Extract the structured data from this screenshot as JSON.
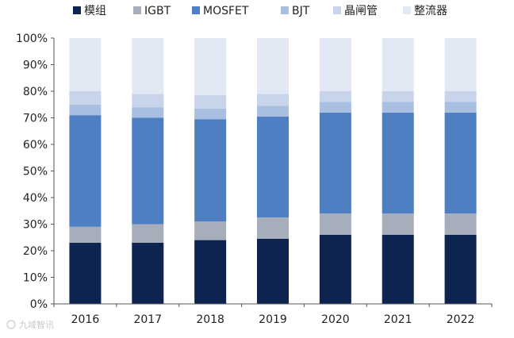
{
  "chart_data": {
    "type": "bar",
    "stacked": true,
    "percent": true,
    "categories": [
      "2016",
      "2017",
      "2018",
      "2019",
      "2020",
      "2021",
      "2022"
    ],
    "ylim": [
      0,
      100
    ],
    "ytick_labels": [
      "0%",
      "10%",
      "20%",
      "30%",
      "40%",
      "50%",
      "60%",
      "70%",
      "80%",
      "90%",
      "100%"
    ],
    "grid": false,
    "legend_position": "top",
    "series": [
      {
        "name": "模组",
        "color": "#0d2451",
        "values": [
          23,
          23,
          24,
          24.5,
          26,
          26,
          26
        ]
      },
      {
        "name": "IGBT",
        "color": "#a6aebb",
        "values": [
          6,
          7,
          7,
          8,
          8,
          8,
          8
        ]
      },
      {
        "name": "MOSFET",
        "color": "#4f7fc3",
        "values": [
          42,
          40,
          38.5,
          38,
          38,
          38,
          38
        ]
      },
      {
        "name": "BJT",
        "color": "#a9bfe1",
        "values": [
          4,
          4,
          4,
          4,
          4,
          4,
          4
        ]
      },
      {
        "name": "晶闸管",
        "color": "#c7d4ea",
        "values": [
          5,
          5,
          5,
          4.5,
          4,
          4,
          4
        ]
      },
      {
        "name": "整流器",
        "color": "#e3e9f4",
        "values": [
          20,
          21,
          21.5,
          21,
          20,
          20,
          20
        ]
      }
    ]
  },
  "watermark": {
    "text": "九域智讯"
  }
}
